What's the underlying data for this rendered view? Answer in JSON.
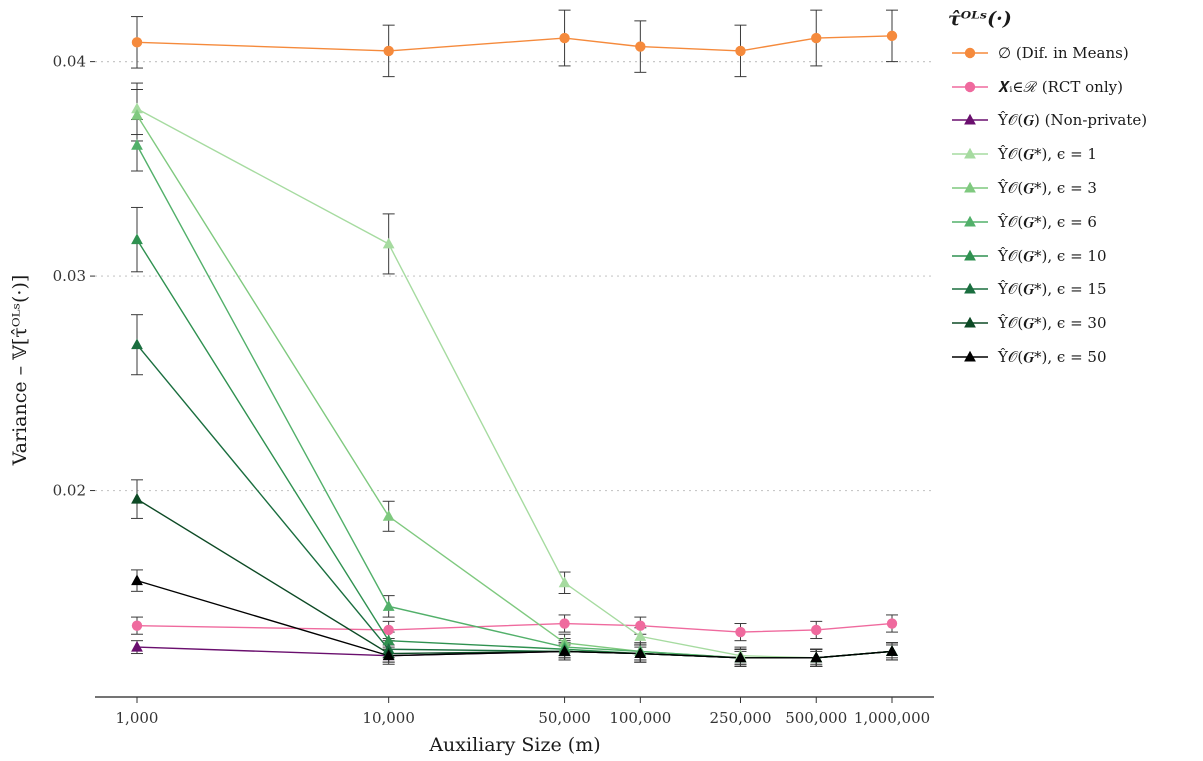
{
  "chart_data": {
    "type": "line",
    "xlabel": "Auxiliary Size (m)",
    "ylabel": "Variance – 𝕍[τ̂ᴼᴸˢ(·)]",
    "x": [
      1000,
      10000,
      50000,
      100000,
      250000,
      500000,
      1000000
    ],
    "x_tick_labels": [
      "1,000",
      "10,000",
      "50,000",
      "100,000",
      "250,000",
      "500,000",
      "1,000,000"
    ],
    "x_scale": "log",
    "ylim": [
      0.0107,
      0.0425
    ],
    "y_ticks": [
      0.02,
      0.03,
      0.04
    ],
    "y_tick_labels": [
      "0.02",
      "0.03",
      "0.04"
    ],
    "grid": "horizontal dotted",
    "legend_position": "right",
    "legend_title": "τ̂ᴼᴸˢ(·)",
    "series": [
      {
        "name": "∅ (Dif. in Means)",
        "color": "#f58a3c",
        "marker": "circle",
        "values": [
          0.0409,
          0.0405,
          0.0411,
          0.0407,
          0.0405,
          0.0411,
          0.0412
        ],
        "errors": [
          0.0012,
          0.0012,
          0.0013,
          0.0012,
          0.0012,
          0.0013,
          0.0012
        ]
      },
      {
        "name": "𝑿ᵢ∈ℛ (RCT only)",
        "color": "#ef6a9e",
        "marker": "circle",
        "values": [
          0.0137,
          0.0135,
          0.0138,
          0.0137,
          0.0134,
          0.0135,
          0.0138
        ],
        "errors": [
          0.0004,
          0.0004,
          0.0004,
          0.0004,
          0.0004,
          0.0004,
          0.0004
        ]
      },
      {
        "name": "Ŷ𝒪(𝑮) (Non-private)",
        "color": "#6a0f6e",
        "marker": "triangle",
        "values": [
          0.0127,
          0.0123,
          0.0125,
          0.0124,
          0.0122,
          0.0122,
          0.0125
        ],
        "errors": [
          0.0003,
          0.0003,
          0.0003,
          0.0003,
          0.0003,
          0.0003,
          0.0003
        ]
      },
      {
        "name": "Ŷ𝒪(𝑮*), ϵ = 1",
        "color": "#a6dba0",
        "marker": "triangle",
        "values": [
          0.0378,
          0.0315,
          0.0157,
          0.0132,
          0.0123,
          0.0122,
          0.0125
        ],
        "errors": [
          0.0012,
          0.0014,
          0.0005,
          0.0004,
          0.0004,
          0.0004,
          0.0004
        ]
      },
      {
        "name": "Ŷ𝒪(𝑮*), ϵ = 3",
        "color": "#7fc97f",
        "marker": "triangle",
        "values": [
          0.0375,
          0.0188,
          0.0129,
          0.0125,
          0.0122,
          0.0122,
          0.0125
        ],
        "errors": [
          0.0012,
          0.0007,
          0.0004,
          0.0004,
          0.0004,
          0.0004,
          0.0004
        ]
      },
      {
        "name": "Ŷ𝒪(𝑮*), ϵ = 6",
        "color": "#52b06a",
        "marker": "triangle",
        "values": [
          0.0361,
          0.0146,
          0.0127,
          0.0125,
          0.0122,
          0.0122,
          0.0125
        ],
        "errors": [
          0.0012,
          0.0005,
          0.0004,
          0.0004,
          0.0004,
          0.0004,
          0.0004
        ]
      },
      {
        "name": "Ŷ𝒪(𝑮*), ϵ = 10",
        "color": "#2f9150",
        "marker": "triangle",
        "values": [
          0.0317,
          0.013,
          0.0126,
          0.0124,
          0.0122,
          0.0122,
          0.0125
        ],
        "errors": [
          0.0015,
          0.0004,
          0.0004,
          0.0004,
          0.0004,
          0.0004,
          0.0004
        ]
      },
      {
        "name": "Ŷ𝒪(𝑮*), ϵ = 15",
        "color": "#1a6e3f",
        "marker": "triangle",
        "values": [
          0.0268,
          0.0126,
          0.0125,
          0.0124,
          0.0122,
          0.0122,
          0.0125
        ],
        "errors": [
          0.0014,
          0.0004,
          0.0004,
          0.0004,
          0.0004,
          0.0004,
          0.0004
        ]
      },
      {
        "name": "Ŷ𝒪(𝑮*), ϵ = 30",
        "color": "#0d4a25",
        "marker": "triangle",
        "values": [
          0.0196,
          0.0124,
          0.0125,
          0.0124,
          0.0122,
          0.0122,
          0.0125
        ],
        "errors": [
          0.0009,
          0.0004,
          0.0004,
          0.0004,
          0.0004,
          0.0004,
          0.0004
        ]
      },
      {
        "name": "Ŷ𝒪(𝑮*), ϵ = 50",
        "color": "#000000",
        "marker": "triangle",
        "values": [
          0.0158,
          0.0123,
          0.0125,
          0.0124,
          0.0122,
          0.0122,
          0.0125
        ],
        "errors": [
          0.0005,
          0.0004,
          0.0004,
          0.0004,
          0.0004,
          0.0004,
          0.0004
        ]
      }
    ]
  }
}
